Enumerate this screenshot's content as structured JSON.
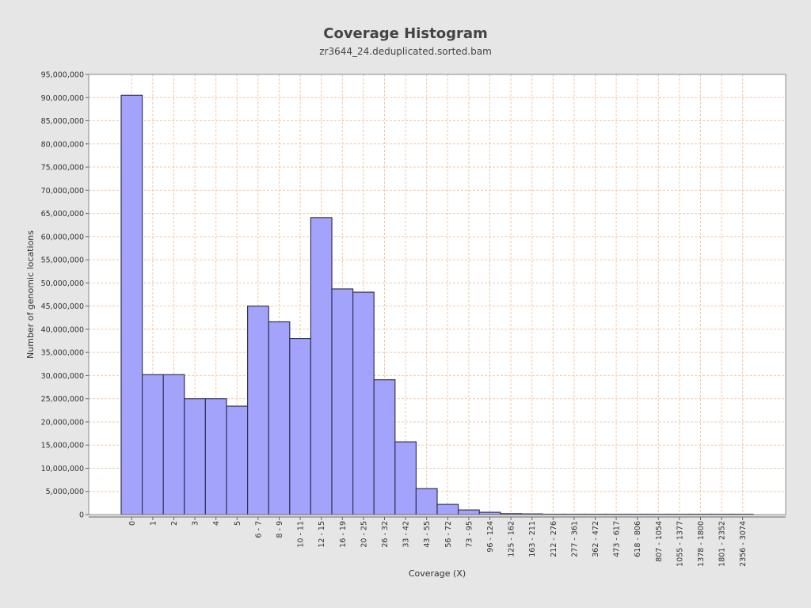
{
  "chart_data": {
    "type": "bar",
    "title": "Coverage Histogram",
    "subtitle": "zr3644_24.deduplicated.sorted.bam",
    "xlabel": "Coverage (X)",
    "ylabel": "Number of genomic locations",
    "ylim": [
      0,
      95000000
    ],
    "yticks": [
      0,
      5000000,
      10000000,
      15000000,
      20000000,
      25000000,
      30000000,
      35000000,
      40000000,
      45000000,
      50000000,
      55000000,
      60000000,
      65000000,
      70000000,
      75000000,
      80000000,
      85000000,
      90000000,
      95000000
    ],
    "ytick_labels": [
      "0",
      "5,000,000",
      "10,000,000",
      "15,000,000",
      "20,000,000",
      "25,000,000",
      "30,000,000",
      "35,000,000",
      "40,000,000",
      "45,000,000",
      "50,000,000",
      "55,000,000",
      "60,000,000",
      "65,000,000",
      "70,000,000",
      "75,000,000",
      "80,000,000",
      "85,000,000",
      "90,000,000",
      "95,000,000"
    ],
    "categories": [
      "0",
      "1",
      "2",
      "3",
      "4",
      "5",
      "6 - 7",
      "8 - 9",
      "10 - 11",
      "12 - 15",
      "16 - 19",
      "20 - 25",
      "26 - 32",
      "33 - 42",
      "43 - 55",
      "56 - 72",
      "73 - 95",
      "96 - 124",
      "125 - 162",
      "163 - 211",
      "212 - 276",
      "277 - 361",
      "362 - 472",
      "473 - 617",
      "618 - 806",
      "807 - 1054",
      "1055 - 1377",
      "1378 - 1800",
      "1801 - 2352",
      "2356 - 3074"
    ],
    "values": [
      90500000,
      30200000,
      30200000,
      25000000,
      25000000,
      23400000,
      45000000,
      41600000,
      38000000,
      64100000,
      48700000,
      48000000,
      29100000,
      15700000,
      5600000,
      2200000,
      1000000,
      500000,
      200000,
      150000,
      50000,
      30000,
      20000,
      15000,
      10000,
      8000,
      5000,
      3000,
      2000,
      1000
    ],
    "grid": true,
    "colors": {
      "bar_fill": "#a3a3fb",
      "bar_stroke": "#333355",
      "grid": "#f0c8a8",
      "plot_bg": "#ffffff",
      "page_bg": "#e6e6e6"
    }
  }
}
